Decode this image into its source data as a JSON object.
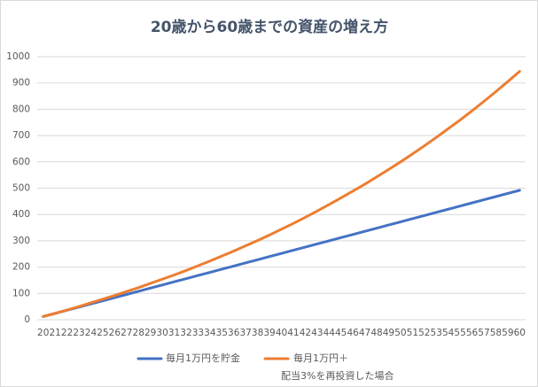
{
  "chart_data": {
    "type": "line",
    "title": "20歳から60歳までの資産の増え方",
    "categories": [
      "20",
      "21",
      "22",
      "23",
      "24",
      "25",
      "26",
      "27",
      "28",
      "29",
      "30",
      "31",
      "32",
      "33",
      "34",
      "35",
      "36",
      "37",
      "38",
      "39",
      "40",
      "41",
      "42",
      "43",
      "44",
      "45",
      "46",
      "47",
      "48",
      "49",
      "50",
      "51",
      "52",
      "53",
      "54",
      "55",
      "56",
      "57",
      "58",
      "59",
      "60"
    ],
    "series": [
      {
        "name": "毎月1万円を貯金",
        "color": "#4472c4",
        "values": [
          12,
          24,
          36,
          48,
          60,
          72,
          84,
          96,
          108,
          120,
          132,
          144,
          156,
          168,
          180,
          192,
          204,
          216,
          228,
          240,
          252,
          264,
          276,
          288,
          300,
          312,
          324,
          336,
          348,
          360,
          372,
          384,
          396,
          408,
          420,
          432,
          444,
          456,
          468,
          480,
          492
        ]
      },
      {
        "name": "毎月1万円＋\n配当3%を再投資した場合",
        "color": "#ed7d31",
        "values": [
          12,
          24,
          37,
          50,
          64,
          78,
          92,
          107,
          122,
          138,
          154,
          170,
          187,
          205,
          223,
          242,
          261,
          281,
          301,
          322,
          344,
          366,
          389,
          413,
          438,
          463,
          489,
          515,
          543,
          571,
          600,
          630,
          661,
          693,
          726,
          759,
          794,
          830,
          867,
          905,
          944
        ]
      }
    ],
    "ylim": [
      0,
      1000
    ],
    "yticks": [
      0,
      100,
      200,
      300,
      400,
      500,
      600,
      700,
      800,
      900,
      1000
    ],
    "grid": true,
    "legend": "bottom"
  }
}
